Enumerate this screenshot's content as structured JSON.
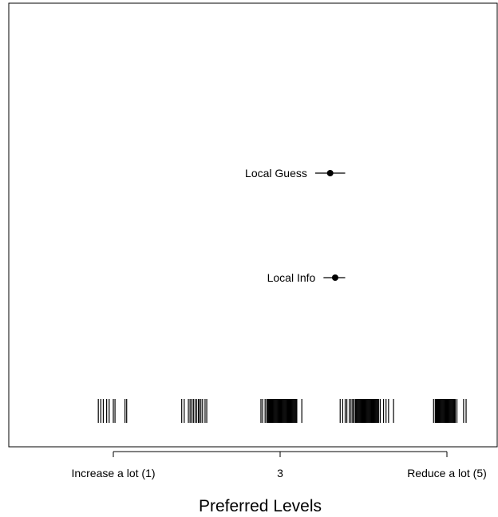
{
  "chart_data": {
    "type": "scatter",
    "title": "",
    "xlabel": "Preferred Levels",
    "ylabel": "",
    "xlim": [
      0.5,
      5.65
    ],
    "grid": false,
    "x_ticks": [
      {
        "value": 1,
        "label": "Increase a lot (1)"
      },
      {
        "value": 3,
        "label": "3"
      },
      {
        "value": 5,
        "label": "Reduce a lot (5)"
      }
    ],
    "series": [
      {
        "label": "Local Guess",
        "estimate": 3.6,
        "ci": [
          3.42,
          3.78
        ]
      },
      {
        "label": "Local Info",
        "estimate": 3.66,
        "ci": [
          3.52,
          3.78
        ]
      }
    ],
    "rug": [
      {
        "cluster": 1,
        "values": [
          0.82,
          0.85,
          0.88,
          0.92,
          0.95,
          1.0,
          1.02,
          1.14,
          1.16
        ]
      },
      {
        "cluster": 2,
        "values": [
          1.82,
          1.85,
          1.9,
          1.92,
          1.94,
          1.96,
          1.98,
          2.0,
          2.02,
          2.03,
          2.05,
          2.07,
          2.1,
          2.12
        ]
      },
      {
        "cluster": 3,
        "values": [
          2.77,
          2.79,
          2.82,
          2.84,
          2.85,
          2.86,
          2.87,
          2.88,
          2.89,
          2.9,
          2.91,
          2.92,
          2.93,
          2.94,
          2.95,
          2.96,
          2.97,
          2.98,
          2.99,
          3.0,
          3.01,
          3.02,
          3.03,
          3.04,
          3.05,
          3.06,
          3.07,
          3.08,
          3.09,
          3.1,
          3.11,
          3.12,
          3.13,
          3.14,
          3.15,
          3.16,
          3.17,
          3.18,
          3.19,
          3.2,
          3.26
        ]
      },
      {
        "cluster": 4,
        "values": [
          3.72,
          3.75,
          3.78,
          3.8,
          3.83,
          3.85,
          3.87,
          3.88,
          3.9,
          3.91,
          3.92,
          3.93,
          3.94,
          3.95,
          3.96,
          3.97,
          3.98,
          3.99,
          4.0,
          4.01,
          4.02,
          4.03,
          4.04,
          4.05,
          4.06,
          4.07,
          4.08,
          4.09,
          4.1,
          4.11,
          4.12,
          4.13,
          4.14,
          4.15,
          4.16,
          4.17,
          4.18,
          4.2,
          4.24,
          4.27,
          4.3,
          4.36
        ]
      },
      {
        "cluster": 5,
        "values": [
          4.84,
          4.86,
          4.87,
          4.88,
          4.89,
          4.9,
          4.91,
          4.92,
          4.93,
          4.94,
          4.95,
          4.96,
          4.97,
          4.98,
          4.99,
          5.0,
          5.01,
          5.02,
          5.03,
          5.04,
          5.05,
          5.06,
          5.07,
          5.08,
          5.09,
          5.1,
          5.12,
          5.2,
          5.23
        ]
      }
    ]
  }
}
